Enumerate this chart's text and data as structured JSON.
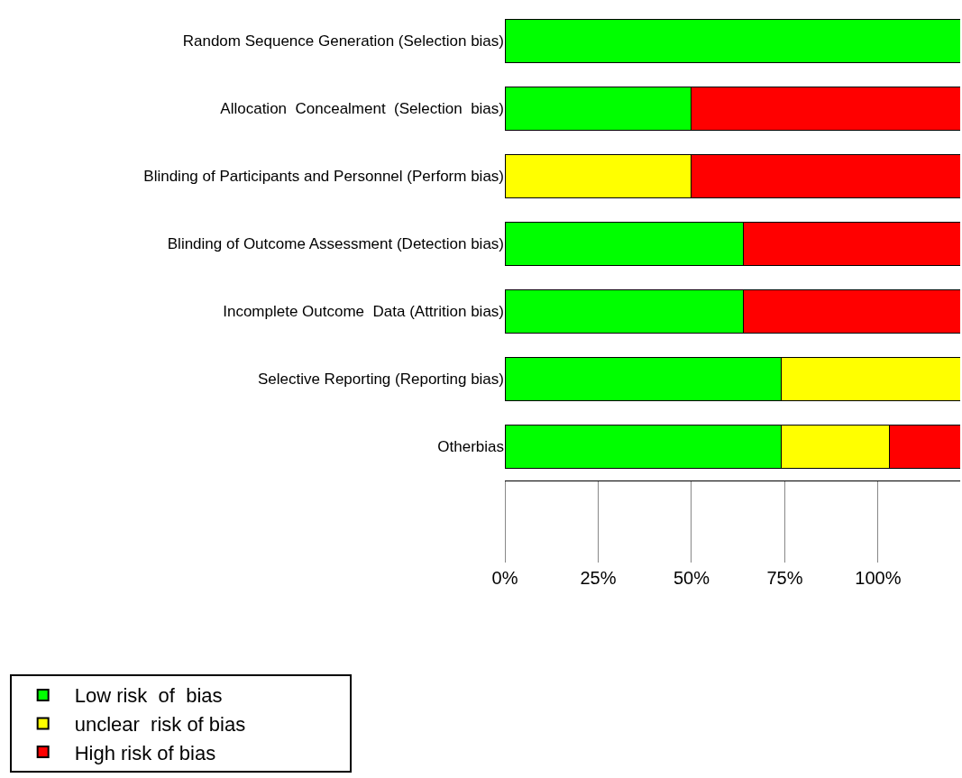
{
  "chart_data": {
    "type": "bar",
    "orientation": "horizontal",
    "stacked": true,
    "categories": [
      "Random Sequence Generation (Selection bias)",
      "Allocation  Concealment  (Selection  bias)",
      "Blinding of Participants and Personnel (Perform bias)",
      "Blinding of Outcome Assessment (Detection bias)",
      "Incomplete Outcome  Data (Attrition bias)",
      "Selective Reporting (Reporting bias)",
      "Otherbias"
    ],
    "series": [
      {
        "name": "Low risk  of  bias",
        "color": "#00ff00",
        "values": [
          122,
          50,
          null,
          64,
          64,
          74,
          74
        ]
      },
      {
        "name": "unclear  risk of bias",
        "color": "#ffff00",
        "values": [
          null,
          null,
          50,
          null,
          null,
          48,
          29
        ]
      },
      {
        "name": "High risk of bias",
        "color": "#ff0000",
        "values": [
          null,
          72,
          72,
          58,
          58,
          null,
          19
        ]
      }
    ],
    "xlim": [
      0,
      122
    ],
    "xticks": [
      {
        "value": 0,
        "label": "0%"
      },
      {
        "value": 25,
        "label": "25%"
      },
      {
        "value": 50,
        "label": "50%"
      },
      {
        "value": 75,
        "label": "75%"
      },
      {
        "value": 100,
        "label": "100%"
      }
    ],
    "grid": false,
    "legend": "bottom"
  }
}
